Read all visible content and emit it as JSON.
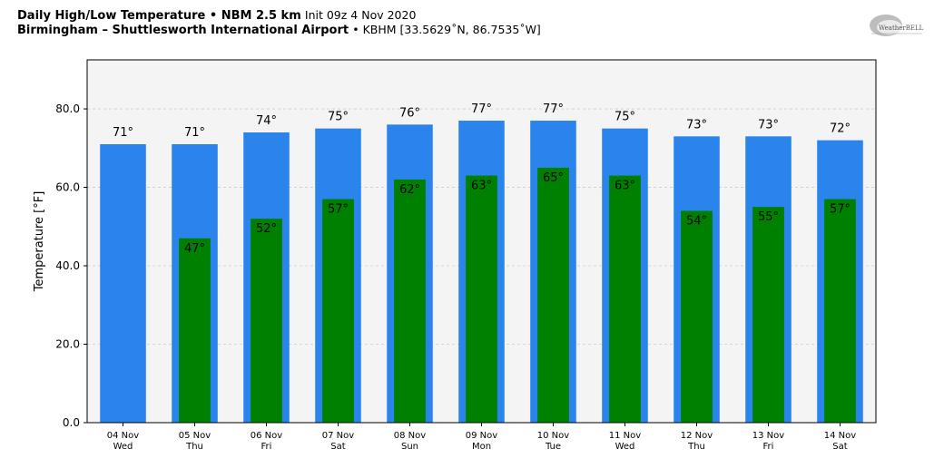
{
  "header": {
    "line1_bold": "Daily High/Low Temperature • NBM 2.5 km",
    "line1_normal": "Init 09z 4 Nov 2020",
    "line2_bold": "Birmingham – Shuttlesworth International Airport",
    "line2_normal": "• KBHM [33.5629˚N, 86.7535˚W]",
    "logo_text": "WeatherBELL"
  },
  "chart_data": {
    "type": "bar",
    "title": "Daily High/Low Temperature • NBM 2.5 km",
    "ylabel": "Temperature [°F]",
    "ylim": [
      0,
      92.5
    ],
    "yticks": [
      "0.0",
      "20.0",
      "40.0",
      "60.0",
      "80.0"
    ],
    "grid": true,
    "categories": [
      {
        "date": "04 Nov",
        "day": "Wed"
      },
      {
        "date": "05 Nov",
        "day": "Thu"
      },
      {
        "date": "06 Nov",
        "day": "Fri"
      },
      {
        "date": "07 Nov",
        "day": "Sat"
      },
      {
        "date": "08 Nov",
        "day": "Sun"
      },
      {
        "date": "09 Nov",
        "day": "Mon"
      },
      {
        "date": "10 Nov",
        "day": "Tue"
      },
      {
        "date": "11 Nov",
        "day": "Wed"
      },
      {
        "date": "12 Nov",
        "day": "Thu"
      },
      {
        "date": "13 Nov",
        "day": "Fri"
      },
      {
        "date": "14 Nov",
        "day": "Sat"
      }
    ],
    "series": [
      {
        "values": [
          71,
          71,
          74,
          75,
          76,
          77,
          77,
          75,
          73,
          73,
          72
        ],
        "labels": [
          "71°",
          "71°",
          "74°",
          "75°",
          "76°",
          "77°",
          "77°",
          "75°",
          "73°",
          "73°",
          "72°"
        ],
        "color": "#2b84ec"
      },
      {
        "values": [
          null,
          47,
          52,
          57,
          62,
          63,
          65,
          63,
          54,
          55,
          57
        ],
        "labels": [
          "",
          "47°",
          "52°",
          "57°",
          "62°",
          "63°",
          "65°",
          "63°",
          "54°",
          "55°",
          "57°"
        ],
        "color": "#008000"
      }
    ],
    "plot_background": "#f4f4f4",
    "grid_color": "#cccccc"
  }
}
